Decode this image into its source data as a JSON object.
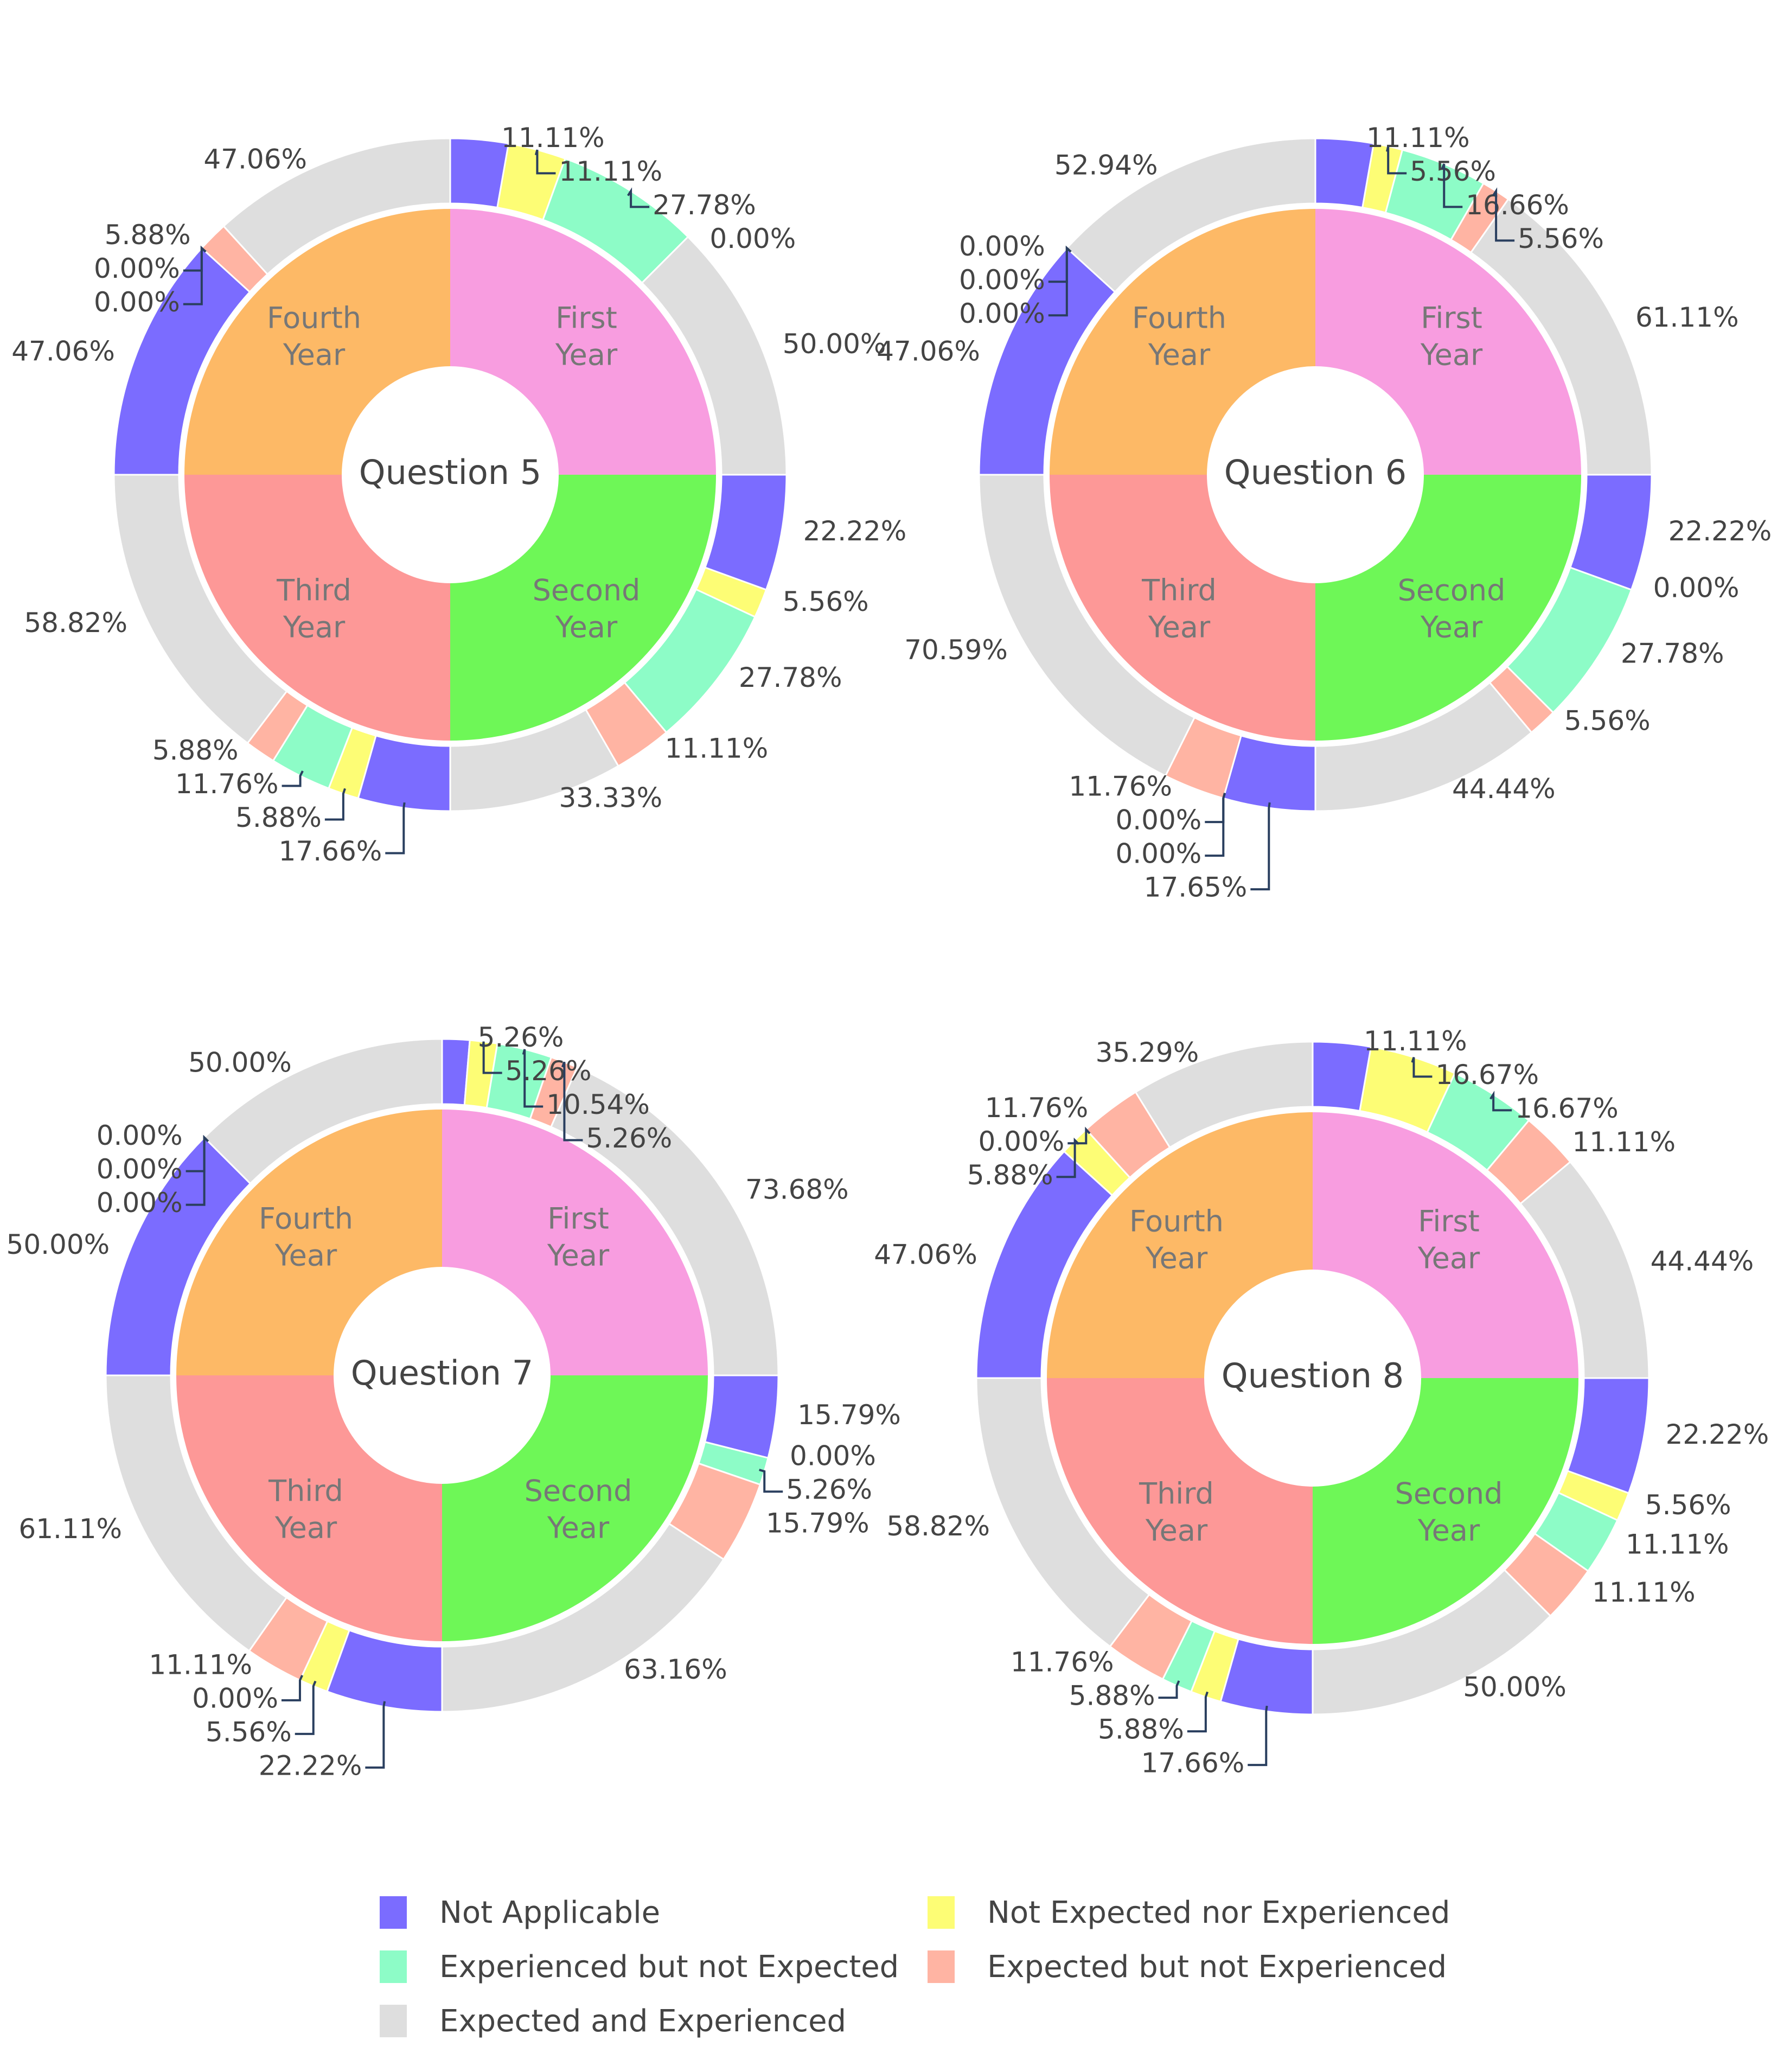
{
  "colors": {
    "not_applicable": "#7b6cff",
    "not_expected_nor_experienced": "#fdfd75",
    "experienced_not_expected": "#8dfcc7",
    "expected_not_experienced": "#ffb4a3",
    "expected_and_experienced": "#dedede",
    "first_year": "#f89de0",
    "second_year": "#6ef757",
    "third_year": "#fd9897",
    "fourth_year": "#fdb966",
    "inner_text": "#777777",
    "label_text": "#444444"
  },
  "legend": [
    {
      "key": "not_applicable",
      "label": "Not Applicable"
    },
    {
      "key": "not_expected_nor_experienced",
      "label": "Not Expected nor Experienced"
    },
    {
      "key": "experienced_not_expected",
      "label": "Experienced but not Expected"
    },
    {
      "key": "expected_not_experienced",
      "label": "Expected but not Experienced"
    },
    {
      "key": "expected_and_experienced",
      "label": "Expected and Experienced"
    }
  ],
  "chart_data": [
    {
      "type": "pie",
      "title": "Question 5",
      "inner": [
        {
          "line1": "First",
          "line2": "Year"
        },
        {
          "line1": "Second",
          "line2": "Year"
        },
        {
          "line1": "Third",
          "line2": "Year"
        },
        {
          "line1": "Fourth",
          "line2": "Year"
        }
      ],
      "outer": [
        [
          {
            "k": "not_applicable",
            "v": 11.11,
            "l": "11.11%"
          },
          {
            "k": "not_expected_nor_experienced",
            "v": 11.11,
            "l": "11.11%"
          },
          {
            "k": "experienced_not_expected",
            "v": 27.78,
            "l": "27.78%"
          },
          {
            "k": "expected_not_experienced",
            "v": 0,
            "l": "0.00%"
          },
          {
            "k": "expected_and_experienced",
            "v": 50,
            "l": "50.00%"
          }
        ],
        [
          {
            "k": "not_applicable",
            "v": 22.22,
            "l": "22.22%"
          },
          {
            "k": "not_expected_nor_experienced",
            "v": 5.56,
            "l": "5.56%"
          },
          {
            "k": "experienced_not_expected",
            "v": 27.78,
            "l": "27.78%"
          },
          {
            "k": "expected_not_experienced",
            "v": 11.11,
            "l": "11.11%"
          },
          {
            "k": "expected_and_experienced",
            "v": 33.33,
            "l": "33.33%"
          }
        ],
        [
          {
            "k": "not_applicable",
            "v": 17.66,
            "l": "17.66%"
          },
          {
            "k": "not_expected_nor_experienced",
            "v": 5.88,
            "l": "5.88%"
          },
          {
            "k": "experienced_not_expected",
            "v": 11.76,
            "l": "11.76%"
          },
          {
            "k": "expected_not_experienced",
            "v": 5.88,
            "l": "5.88%"
          },
          {
            "k": "expected_and_experienced",
            "v": 58.82,
            "l": "58.82%"
          }
        ],
        [
          {
            "k": "not_applicable",
            "v": 47.06,
            "l": "47.06%"
          },
          {
            "k": "not_expected_nor_experienced",
            "v": 0,
            "l": "0.00%"
          },
          {
            "k": "experienced_not_expected",
            "v": 0,
            "l": "0.00%"
          },
          {
            "k": "expected_not_experienced",
            "v": 5.88,
            "l": "5.88%"
          },
          {
            "k": "expected_and_experienced",
            "v": 47.06,
            "l": "47.06%"
          }
        ]
      ]
    },
    {
      "type": "pie",
      "title": "Question 6",
      "inner": [
        {
          "line1": "First",
          "line2": "Year"
        },
        {
          "line1": "Second",
          "line2": "Year"
        },
        {
          "line1": "Third",
          "line2": "Year"
        },
        {
          "line1": "Fourth",
          "line2": "Year"
        }
      ],
      "outer": [
        [
          {
            "k": "not_applicable",
            "v": 11.11,
            "l": "11.11%"
          },
          {
            "k": "not_expected_nor_experienced",
            "v": 5.56,
            "l": "5.56%"
          },
          {
            "k": "experienced_not_expected",
            "v": 16.66,
            "l": "16.66%"
          },
          {
            "k": "expected_not_experienced",
            "v": 5.56,
            "l": "5.56%"
          },
          {
            "k": "expected_and_experienced",
            "v": 61.11,
            "l": "61.11%"
          }
        ],
        [
          {
            "k": "not_applicable",
            "v": 22.22,
            "l": "22.22%"
          },
          {
            "k": "not_expected_nor_experienced",
            "v": 0,
            "l": "0.00%"
          },
          {
            "k": "experienced_not_expected",
            "v": 27.78,
            "l": "27.78%"
          },
          {
            "k": "expected_not_experienced",
            "v": 5.56,
            "l": "5.56%"
          },
          {
            "k": "expected_and_experienced",
            "v": 44.44,
            "l": "44.44%"
          }
        ],
        [
          {
            "k": "not_applicable",
            "v": 17.65,
            "l": "17.65%"
          },
          {
            "k": "not_expected_nor_experienced",
            "v": 0,
            "l": "0.00%"
          },
          {
            "k": "experienced_not_expected",
            "v": 0,
            "l": "0.00%"
          },
          {
            "k": "expected_not_experienced",
            "v": 11.76,
            "l": "11.76%"
          },
          {
            "k": "expected_and_experienced",
            "v": 70.59,
            "l": "70.59%"
          }
        ],
        [
          {
            "k": "not_applicable",
            "v": 47.06,
            "l": "47.06%"
          },
          {
            "k": "not_expected_nor_experienced",
            "v": 0,
            "l": "0.00%"
          },
          {
            "k": "experienced_not_expected",
            "v": 0,
            "l": "0.00%"
          },
          {
            "k": "expected_not_experienced",
            "v": 0,
            "l": "0.00%"
          },
          {
            "k": "expected_and_experienced",
            "v": 52.94,
            "l": "52.94%"
          }
        ]
      ]
    },
    {
      "type": "pie",
      "title": "Question 7",
      "inner": [
        {
          "line1": "First",
          "line2": "Year"
        },
        {
          "line1": "Second",
          "line2": "Year"
        },
        {
          "line1": "Third",
          "line2": "Year"
        },
        {
          "line1": "Fourth",
          "line2": "Year"
        }
      ],
      "outer": [
        [
          {
            "k": "not_applicable",
            "v": 5.26,
            "l": "5.26%"
          },
          {
            "k": "not_expected_nor_experienced",
            "v": 5.26,
            "l": "5.26%"
          },
          {
            "k": "experienced_not_expected",
            "v": 10.54,
            "l": "10.54%"
          },
          {
            "k": "expected_not_experienced",
            "v": 5.26,
            "l": "5.26%"
          },
          {
            "k": "expected_and_experienced",
            "v": 73.68,
            "l": "73.68%"
          }
        ],
        [
          {
            "k": "not_applicable",
            "v": 15.79,
            "l": "15.79%"
          },
          {
            "k": "not_expected_nor_experienced",
            "v": 0,
            "l": "0.00%"
          },
          {
            "k": "experienced_not_expected",
            "v": 5.26,
            "l": "5.26%"
          },
          {
            "k": "expected_not_experienced",
            "v": 15.79,
            "l": "15.79%"
          },
          {
            "k": "expected_and_experienced",
            "v": 63.16,
            "l": "63.16%"
          }
        ],
        [
          {
            "k": "not_applicable",
            "v": 22.22,
            "l": "22.22%"
          },
          {
            "k": "not_expected_nor_experienced",
            "v": 5.56,
            "l": "5.56%"
          },
          {
            "k": "experienced_not_expected",
            "v": 0,
            "l": "0.00%"
          },
          {
            "k": "expected_not_experienced",
            "v": 11.11,
            "l": "11.11%"
          },
          {
            "k": "expected_and_experienced",
            "v": 61.11,
            "l": "61.11%"
          }
        ],
        [
          {
            "k": "not_applicable",
            "v": 50,
            "l": "50.00%"
          },
          {
            "k": "not_expected_nor_experienced",
            "v": 0,
            "l": "0.00%"
          },
          {
            "k": "experienced_not_expected",
            "v": 0,
            "l": "0.00%"
          },
          {
            "k": "expected_not_experienced",
            "v": 0,
            "l": "0.00%"
          },
          {
            "k": "expected_and_experienced",
            "v": 50,
            "l": "50.00%"
          }
        ]
      ]
    },
    {
      "type": "pie",
      "title": "Question 8",
      "inner": [
        {
          "line1": "First",
          "line2": "Year"
        },
        {
          "line1": "Second",
          "line2": "Year"
        },
        {
          "line1": "Third",
          "line2": "Year"
        },
        {
          "line1": "Fourth",
          "line2": "Year"
        }
      ],
      "outer": [
        [
          {
            "k": "not_applicable",
            "v": 11.11,
            "l": "11.11%"
          },
          {
            "k": "not_expected_nor_experienced",
            "v": 16.67,
            "l": "16.67%"
          },
          {
            "k": "experienced_not_expected",
            "v": 16.67,
            "l": "16.67%"
          },
          {
            "k": "expected_not_experienced",
            "v": 11.11,
            "l": "11.11%"
          },
          {
            "k": "expected_and_experienced",
            "v": 44.44,
            "l": "44.44%"
          }
        ],
        [
          {
            "k": "not_applicable",
            "v": 22.22,
            "l": "22.22%"
          },
          {
            "k": "not_expected_nor_experienced",
            "v": 5.56,
            "l": "5.56%"
          },
          {
            "k": "experienced_not_expected",
            "v": 11.11,
            "l": "11.11%"
          },
          {
            "k": "expected_not_experienced",
            "v": 11.11,
            "l": "11.11%"
          },
          {
            "k": "expected_and_experienced",
            "v": 50,
            "l": "50.00%"
          }
        ],
        [
          {
            "k": "not_applicable",
            "v": 17.66,
            "l": "17.66%"
          },
          {
            "k": "not_expected_nor_experienced",
            "v": 5.88,
            "l": "5.88%"
          },
          {
            "k": "experienced_not_expected",
            "v": 5.88,
            "l": "5.88%"
          },
          {
            "k": "expected_not_experienced",
            "v": 11.76,
            "l": "11.76%"
          },
          {
            "k": "expected_and_experienced",
            "v": 58.82,
            "l": "58.82%"
          }
        ],
        [
          {
            "k": "not_applicable",
            "v": 47.06,
            "l": "47.06%"
          },
          {
            "k": "not_expected_nor_experienced",
            "v": 5.88,
            "l": "5.88%"
          },
          {
            "k": "experienced_not_expected",
            "v": 0,
            "l": "0.00%"
          },
          {
            "k": "expected_not_experienced",
            "v": 11.76,
            "l": "11.76%"
          },
          {
            "k": "expected_and_experienced",
            "v": 35.29,
            "l": "35.29%"
          }
        ]
      ]
    }
  ]
}
